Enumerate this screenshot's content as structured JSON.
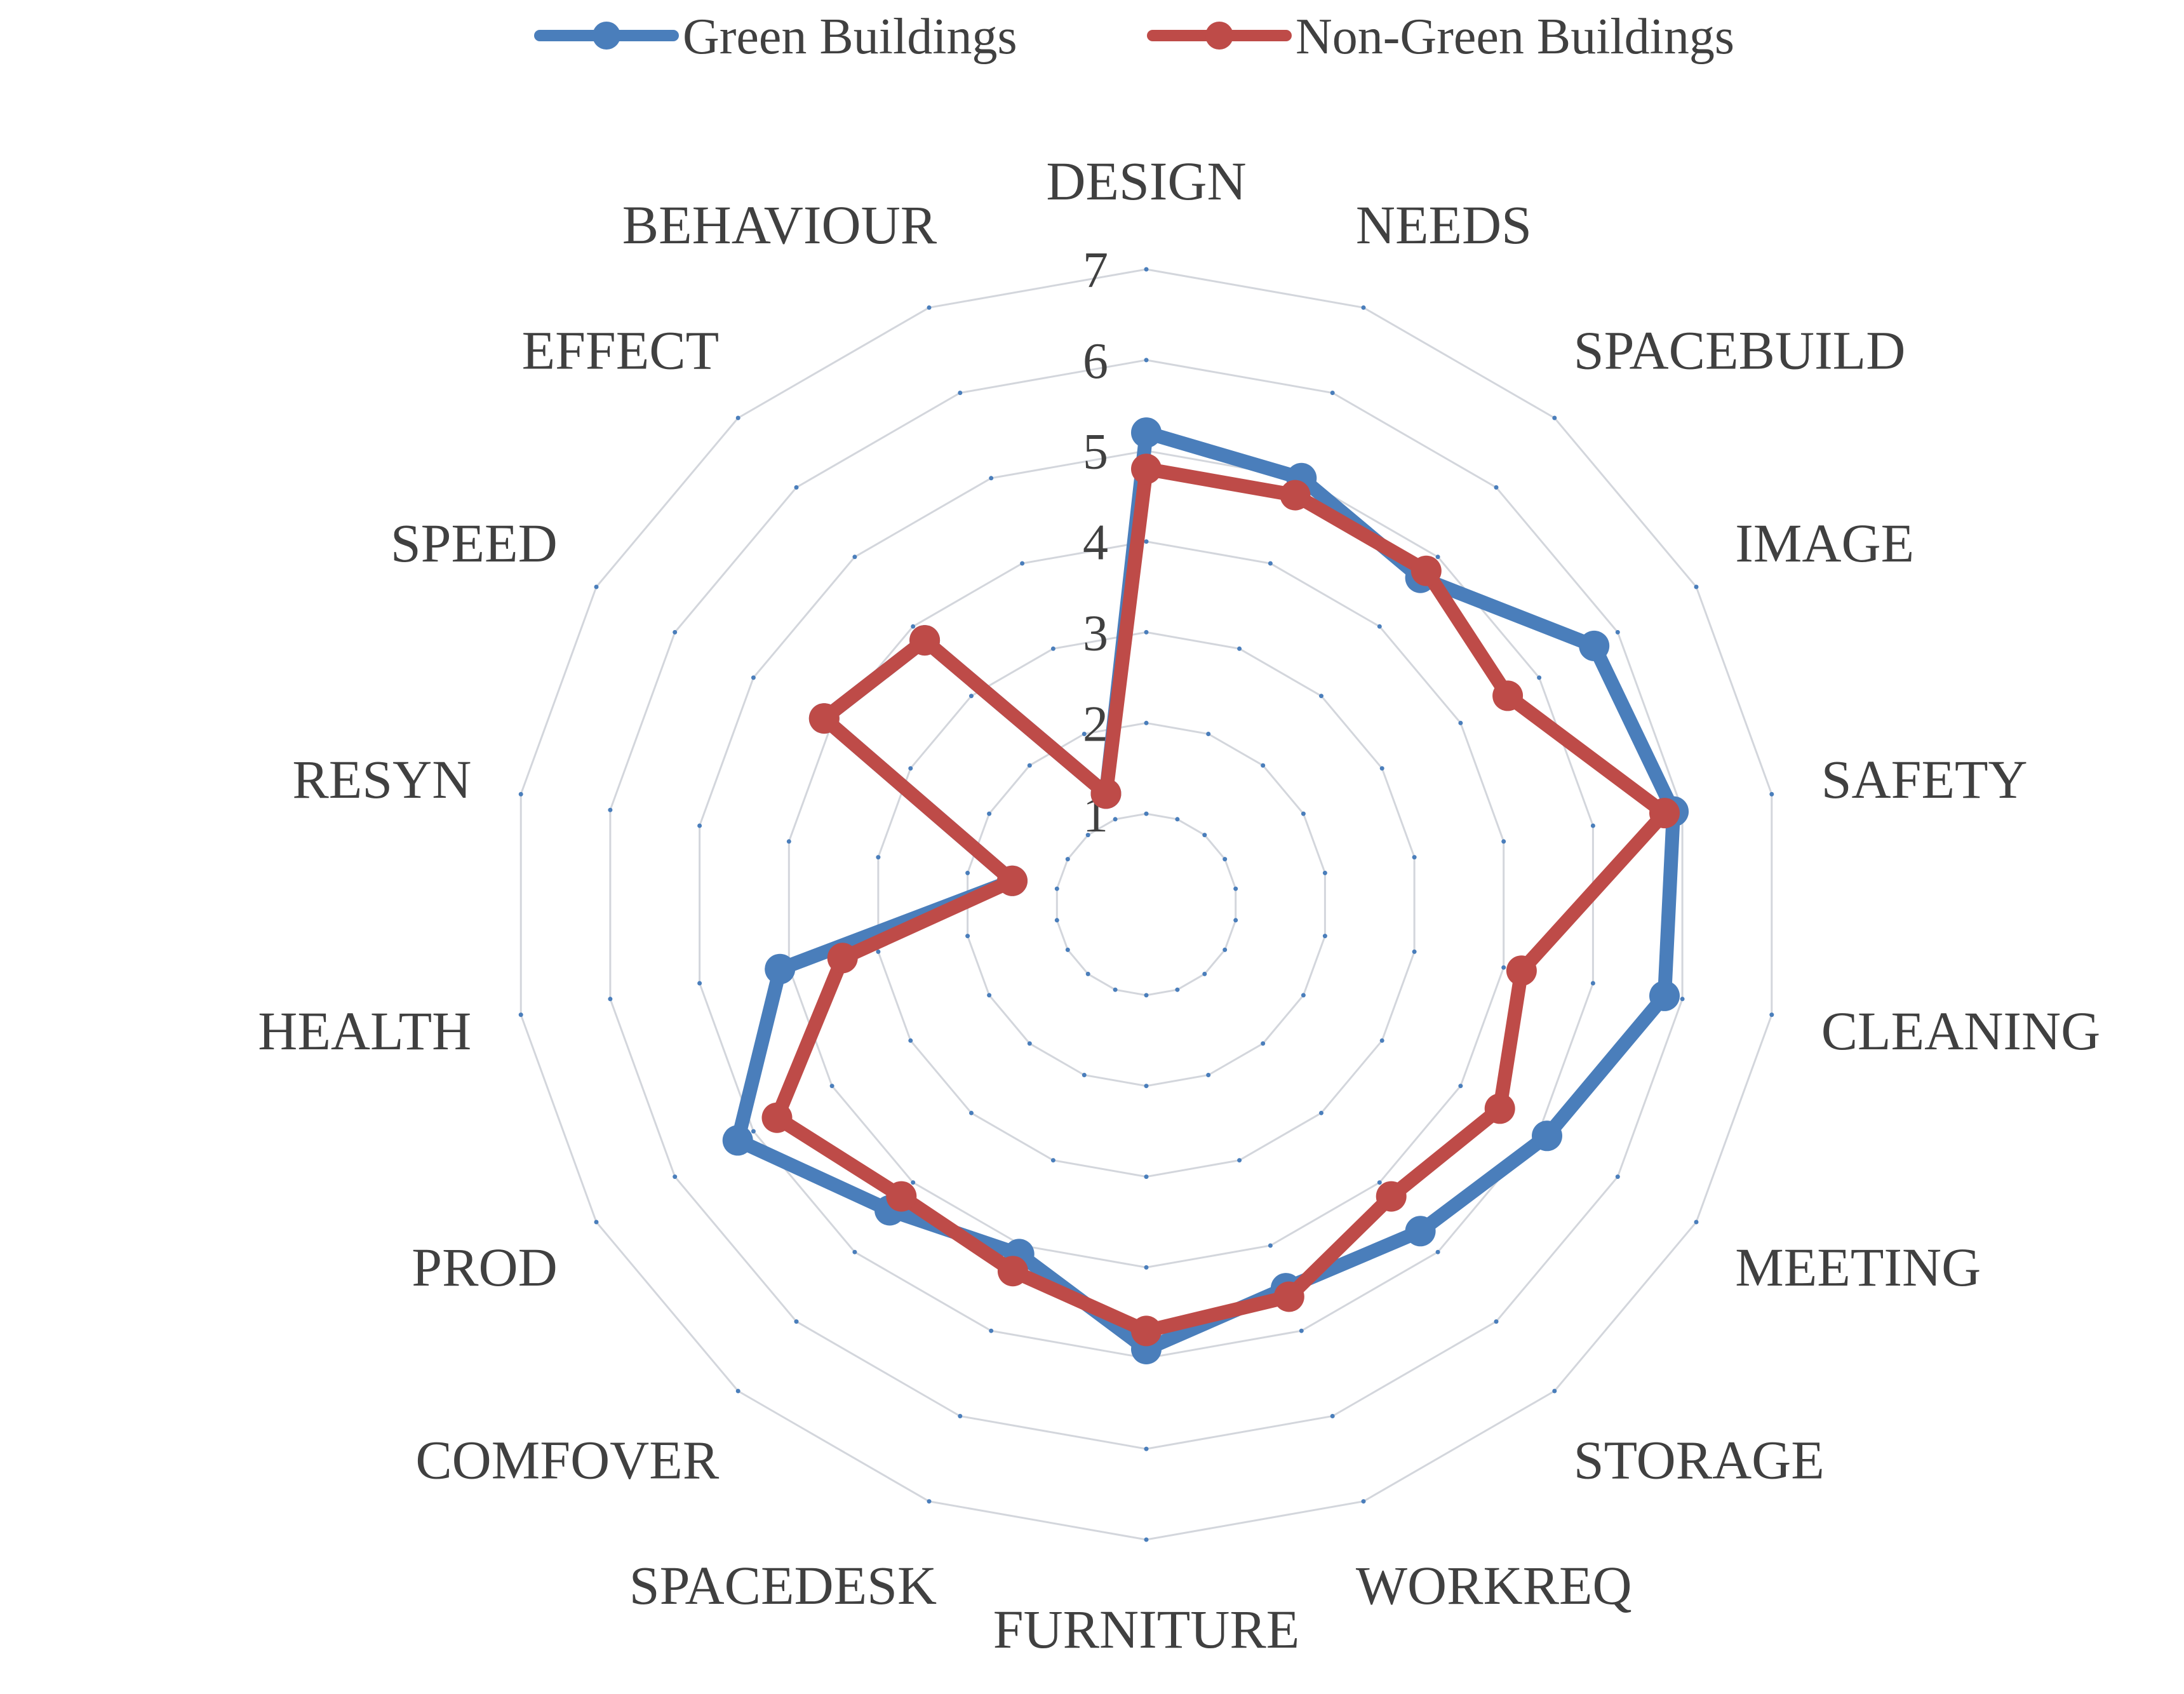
{
  "chart_data": {
    "type": "radar",
    "categories": [
      "DESIGN",
      "NEEDS",
      "SPACEBUILD",
      "IMAGE",
      "SAFETY",
      "CLEANING",
      "MEETING",
      "STORAGE",
      "WORKREQ",
      "FURNITURE",
      "SPACEDESK",
      "COMFOVER",
      "PROD",
      "HEALTH",
      "RESYN",
      "SPEED",
      "EFFECT",
      "BEHAVIOUR"
    ],
    "series": [
      {
        "name": "Green Buildings",
        "color": "#4a7ebb",
        "values": [
          5.2,
          5.0,
          4.7,
          5.7,
          5.9,
          5.8,
          5.1,
          4.7,
          4.5,
          4.9,
          4.1,
          4.4,
          5.2,
          4.1,
          1.5,
          4.1,
          3.8,
          1.3
        ]
      },
      {
        "name": "Non-Green Buildings",
        "color": "#be4b48",
        "values": [
          4.8,
          4.8,
          4.8,
          4.6,
          5.8,
          4.2,
          4.5,
          4.2,
          4.6,
          4.7,
          4.3,
          4.2,
          4.7,
          3.4,
          1.5,
          4.1,
          3.8,
          1.3
        ]
      }
    ],
    "rlim": [
      0,
      7
    ],
    "ticks": [
      "1",
      "2",
      "3",
      "4",
      "5",
      "6",
      "7"
    ],
    "grid": true,
    "legend_position": "top"
  }
}
